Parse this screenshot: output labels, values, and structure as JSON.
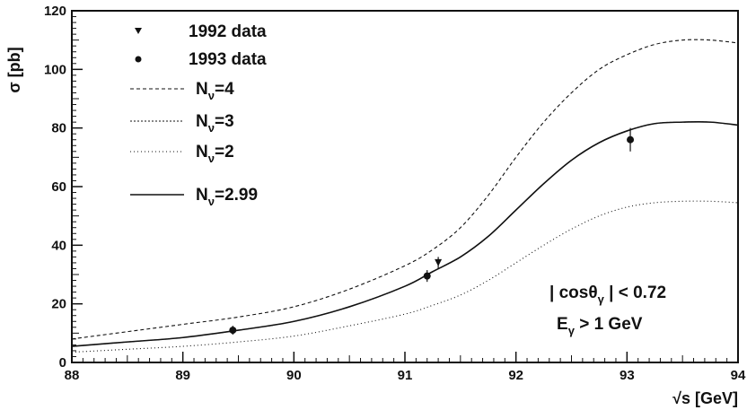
{
  "chart_data": {
    "type": "line",
    "xlabel": "√s [GeV]",
    "ylabel": "σ [pb]",
    "xlim": [
      88,
      94
    ],
    "ylim": [
      0,
      120
    ],
    "xticks": [
      88,
      89,
      90,
      91,
      92,
      93,
      94
    ],
    "yticks": [
      0,
      20,
      40,
      60,
      80,
      100,
      120
    ],
    "grid": false,
    "legend_position": "top-left",
    "x": [
      88.0,
      88.5,
      89.0,
      89.5,
      90.0,
      90.5,
      91.0,
      91.25,
      91.5,
      91.75,
      92.0,
      92.25,
      92.5,
      92.75,
      93.0,
      93.25,
      93.5,
      93.75,
      94.0
    ],
    "series": [
      {
        "name": "N_ν=4",
        "style": "dashed",
        "values": [
          8.0,
          10.5,
          13.0,
          15.5,
          19.0,
          25.0,
          33.0,
          38.5,
          46.0,
          57.0,
          70.0,
          82.0,
          92.0,
          100.0,
          105.0,
          108.5,
          110.0,
          110.0,
          109.0
        ]
      },
      {
        "name": "N_ν=3",
        "style": "fine-dashed",
        "values": [
          5.5,
          7.0,
          8.5,
          11.0,
          14.0,
          19.0,
          26.0,
          31.0,
          36.0,
          43.0,
          52.0,
          61.0,
          69.0,
          75.0,
          79.0,
          81.5,
          82.0,
          82.0,
          81.0
        ]
      },
      {
        "name": "N_ν=2",
        "style": "dotted",
        "values": [
          3.5,
          4.5,
          5.5,
          7.0,
          9.0,
          12.5,
          16.5,
          19.5,
          23.0,
          28.0,
          34.0,
          40.0,
          45.5,
          50.0,
          53.0,
          54.5,
          55.0,
          55.0,
          54.5
        ]
      },
      {
        "name": "N_ν=2.99",
        "style": "solid",
        "values": [
          5.5,
          7.0,
          8.5,
          11.0,
          14.0,
          19.0,
          26.0,
          31.0,
          36.0,
          43.0,
          52.0,
          61.0,
          69.0,
          75.0,
          79.0,
          81.5,
          82.0,
          82.0,
          81.0
        ]
      }
    ],
    "points": [
      {
        "name": "1992 data",
        "marker": "triangle-down",
        "data": [
          {
            "x": 91.3,
            "y": 34,
            "err": 2
          }
        ]
      },
      {
        "name": "1993 data",
        "marker": "circle",
        "data": [
          {
            "x": 89.45,
            "y": 11,
            "err": 1.5
          },
          {
            "x": 91.2,
            "y": 29.5,
            "err": 2
          },
          {
            "x": 93.03,
            "y": 76,
            "err": 4
          }
        ]
      }
    ],
    "legend": [
      {
        "label": "1992 data",
        "sub": ""
      },
      {
        "label": "1993 data",
        "sub": ""
      },
      {
        "label": "N",
        "sub": "ν",
        "suffix": "=4"
      },
      {
        "label": "N",
        "sub": "ν",
        "suffix": "=3"
      },
      {
        "label": "N",
        "sub": "ν",
        "suffix": "=2"
      },
      {
        "label": "N",
        "sub": "ν",
        "suffix": "=2.99"
      }
    ],
    "annotations": [
      {
        "text": "| cosθ",
        "sub": "γ",
        "suffix": " | < 0.72"
      },
      {
        "text": "E",
        "sub": "γ",
        "suffix": " > 1 GeV"
      }
    ]
  }
}
